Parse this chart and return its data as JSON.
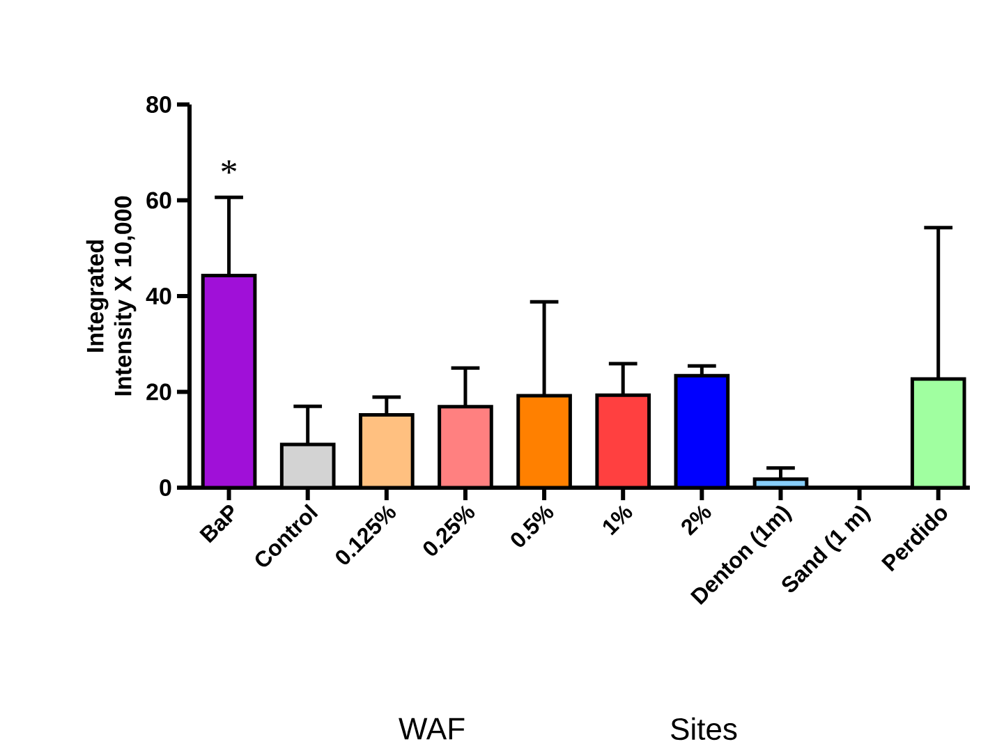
{
  "chart_data": {
    "type": "bar",
    "ylabel": "Integrated Intensity X 10,000",
    "categories": [
      "BaP",
      "Control",
      "0.125%",
      "0.25%",
      "0.5%",
      "1%",
      "2%",
      "Denton (1m)",
      "Sand (1 m)",
      "Perdido"
    ],
    "values": [
      44.3,
      9.0,
      15.2,
      16.9,
      19.2,
      19.3,
      23.4,
      1.8,
      0,
      22.7
    ],
    "errors": [
      [
        44.3,
        60.6
      ],
      [
        9.0,
        17.0
      ],
      [
        15.2,
        18.9
      ],
      [
        16.9,
        25.0
      ],
      [
        19.2,
        38.8
      ],
      [
        19.3,
        25.9
      ],
      [
        23.4,
        25.4
      ],
      [
        1.8,
        4.1
      ],
      null,
      [
        22.7,
        54.3
      ]
    ],
    "colors": [
      "#a010d8",
      "#d3d3d3",
      "#ffc080",
      "#ff8080",
      "#ff8000",
      "#ff4040",
      "#0000ff",
      "#87cefa",
      "#ffffff",
      "#a0ffa0"
    ],
    "ylim": [
      0,
      80
    ],
    "yticks": [
      0,
      20,
      40,
      60,
      80
    ],
    "grid": false,
    "annotations": [
      "*",
      "WAF",
      "Sites"
    ]
  }
}
